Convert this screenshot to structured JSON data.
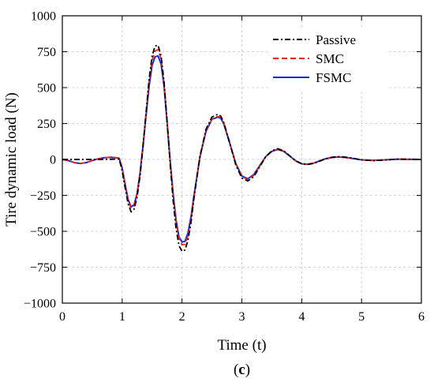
{
  "chart_data": {
    "type": "line",
    "xlabel": "Time (t)",
    "ylabel": "Tire dynamic load (N)",
    "panel_label": {
      "open": "(",
      "letter": "c",
      "close": ")"
    },
    "xlim": [
      0,
      6
    ],
    "ylim": [
      -1000,
      1000
    ],
    "xticks": [
      "0",
      "1",
      "2",
      "3",
      "4",
      "5",
      "6"
    ],
    "yticks": [
      "1000",
      "750",
      "500",
      "250",
      "0",
      "−250",
      "−500",
      "−750",
      "−1000"
    ],
    "xtick_values": [
      0,
      1,
      2,
      3,
      4,
      5,
      6
    ],
    "ytick_values": [
      1000,
      750,
      500,
      250,
      0,
      -250,
      -500,
      -750,
      -1000
    ],
    "grid": true,
    "legend_position": "top-right",
    "series": [
      {
        "name": "Passive",
        "color": "#000000",
        "style": "dashdot",
        "points": [
          [
            0,
            0
          ],
          [
            0.2,
            0
          ],
          [
            0.4,
            0
          ],
          [
            0.6,
            0
          ],
          [
            0.8,
            1
          ],
          [
            0.95,
            3
          ],
          [
            1.0,
            -80
          ],
          [
            1.05,
            -200
          ],
          [
            1.1,
            -310
          ],
          [
            1.15,
            -365
          ],
          [
            1.2,
            -345
          ],
          [
            1.25,
            -260
          ],
          [
            1.3,
            -110
          ],
          [
            1.35,
            100
          ],
          [
            1.4,
            330
          ],
          [
            1.45,
            560
          ],
          [
            1.5,
            720
          ],
          [
            1.55,
            790
          ],
          [
            1.6,
            795
          ],
          [
            1.65,
            720
          ],
          [
            1.7,
            540
          ],
          [
            1.75,
            270
          ],
          [
            1.8,
            -20
          ],
          [
            1.85,
            -280
          ],
          [
            1.9,
            -480
          ],
          [
            1.95,
            -600
          ],
          [
            2.0,
            -640
          ],
          [
            2.05,
            -630
          ],
          [
            2.1,
            -560
          ],
          [
            2.15,
            -440
          ],
          [
            2.2,
            -270
          ],
          [
            2.3,
            20
          ],
          [
            2.4,
            210
          ],
          [
            2.5,
            295
          ],
          [
            2.6,
            315
          ],
          [
            2.65,
            300
          ],
          [
            2.7,
            255
          ],
          [
            2.8,
            110
          ],
          [
            2.9,
            -40
          ],
          [
            3.0,
            -130
          ],
          [
            3.1,
            -150
          ],
          [
            3.2,
            -120
          ],
          [
            3.3,
            -50
          ],
          [
            3.4,
            20
          ],
          [
            3.5,
            60
          ],
          [
            3.6,
            75
          ],
          [
            3.7,
            60
          ],
          [
            3.8,
            25
          ],
          [
            3.9,
            -10
          ],
          [
            4.0,
            -30
          ],
          [
            4.1,
            -35
          ],
          [
            4.2,
            -28
          ],
          [
            4.3,
            -12
          ],
          [
            4.4,
            5
          ],
          [
            4.5,
            15
          ],
          [
            4.6,
            20
          ],
          [
            4.7,
            18
          ],
          [
            4.8,
            12
          ],
          [
            4.9,
            5
          ],
          [
            5.0,
            -3
          ],
          [
            5.2,
            -8
          ],
          [
            5.4,
            -4
          ],
          [
            5.6,
            2
          ],
          [
            5.8,
            2
          ],
          [
            6.0,
            0
          ]
        ]
      },
      {
        "name": "SMC",
        "color": "#e8241c",
        "style": "dashed",
        "points": [
          [
            0,
            0
          ],
          [
            0.1,
            -8
          ],
          [
            0.2,
            -22
          ],
          [
            0.3,
            -28
          ],
          [
            0.4,
            -22
          ],
          [
            0.5,
            -8
          ],
          [
            0.6,
            5
          ],
          [
            0.7,
            12
          ],
          [
            0.8,
            15
          ],
          [
            0.9,
            12
          ],
          [
            0.95,
            8
          ],
          [
            1.0,
            -60
          ],
          [
            1.05,
            -180
          ],
          [
            1.1,
            -290
          ],
          [
            1.15,
            -340
          ],
          [
            1.2,
            -325
          ],
          [
            1.25,
            -240
          ],
          [
            1.3,
            -90
          ],
          [
            1.35,
            110
          ],
          [
            1.4,
            330
          ],
          [
            1.45,
            540
          ],
          [
            1.5,
            690
          ],
          [
            1.55,
            755
          ],
          [
            1.6,
            765
          ],
          [
            1.65,
            700
          ],
          [
            1.7,
            530
          ],
          [
            1.75,
            270
          ],
          [
            1.8,
            0
          ],
          [
            1.85,
            -240
          ],
          [
            1.9,
            -430
          ],
          [
            1.95,
            -550
          ],
          [
            2.0,
            -595
          ],
          [
            2.05,
            -590
          ],
          [
            2.1,
            -530
          ],
          [
            2.15,
            -420
          ],
          [
            2.2,
            -260
          ],
          [
            2.3,
            20
          ],
          [
            2.4,
            200
          ],
          [
            2.5,
            280
          ],
          [
            2.6,
            300
          ],
          [
            2.65,
            290
          ],
          [
            2.7,
            250
          ],
          [
            2.8,
            110
          ],
          [
            2.9,
            -30
          ],
          [
            3.0,
            -120
          ],
          [
            3.1,
            -140
          ],
          [
            3.2,
            -110
          ],
          [
            3.3,
            -45
          ],
          [
            3.4,
            20
          ],
          [
            3.5,
            58
          ],
          [
            3.6,
            72
          ],
          [
            3.7,
            58
          ],
          [
            3.8,
            25
          ],
          [
            3.9,
            -10
          ],
          [
            4.0,
            -30
          ],
          [
            4.1,
            -34
          ],
          [
            4.2,
            -26
          ],
          [
            4.3,
            -10
          ],
          [
            4.4,
            5
          ],
          [
            4.5,
            14
          ],
          [
            4.6,
            18
          ],
          [
            4.7,
            16
          ],
          [
            4.8,
            10
          ],
          [
            4.9,
            4
          ],
          [
            5.0,
            -3
          ],
          [
            5.2,
            -7
          ],
          [
            5.4,
            -3
          ],
          [
            5.6,
            2
          ],
          [
            5.8,
            1
          ],
          [
            6.0,
            0
          ]
        ]
      },
      {
        "name": "FSMC",
        "color": "#1c2ad6",
        "style": "solid",
        "points": [
          [
            0,
            0
          ],
          [
            0.1,
            -8
          ],
          [
            0.2,
            -22
          ],
          [
            0.3,
            -28
          ],
          [
            0.4,
            -22
          ],
          [
            0.5,
            -8
          ],
          [
            0.6,
            5
          ],
          [
            0.7,
            12
          ],
          [
            0.8,
            15
          ],
          [
            0.9,
            12
          ],
          [
            0.95,
            8
          ],
          [
            1.0,
            -60
          ],
          [
            1.05,
            -175
          ],
          [
            1.1,
            -280
          ],
          [
            1.15,
            -330
          ],
          [
            1.2,
            -315
          ],
          [
            1.25,
            -235
          ],
          [
            1.3,
            -90
          ],
          [
            1.35,
            100
          ],
          [
            1.4,
            310
          ],
          [
            1.45,
            510
          ],
          [
            1.5,
            655
          ],
          [
            1.55,
            715
          ],
          [
            1.6,
            720
          ],
          [
            1.65,
            665
          ],
          [
            1.7,
            510
          ],
          [
            1.75,
            260
          ],
          [
            1.8,
            0
          ],
          [
            1.85,
            -230
          ],
          [
            1.9,
            -420
          ],
          [
            1.95,
            -540
          ],
          [
            2.0,
            -575
          ],
          [
            2.05,
            -570
          ],
          [
            2.1,
            -510
          ],
          [
            2.15,
            -400
          ],
          [
            2.2,
            -250
          ],
          [
            2.3,
            20
          ],
          [
            2.4,
            195
          ],
          [
            2.5,
            280
          ],
          [
            2.6,
            295
          ],
          [
            2.65,
            285
          ],
          [
            2.7,
            245
          ],
          [
            2.8,
            110
          ],
          [
            2.9,
            -30
          ],
          [
            3.0,
            -115
          ],
          [
            3.1,
            -135
          ],
          [
            3.2,
            -105
          ],
          [
            3.3,
            -42
          ],
          [
            3.4,
            20
          ],
          [
            3.5,
            56
          ],
          [
            3.6,
            70
          ],
          [
            3.7,
            56
          ],
          [
            3.8,
            24
          ],
          [
            3.9,
            -10
          ],
          [
            4.0,
            -30
          ],
          [
            4.1,
            -33
          ],
          [
            4.2,
            -25
          ],
          [
            4.3,
            -10
          ],
          [
            4.4,
            5
          ],
          [
            4.5,
            13
          ],
          [
            4.6,
            17
          ],
          [
            4.7,
            15
          ],
          [
            4.8,
            10
          ],
          [
            4.9,
            4
          ],
          [
            5.0,
            -3
          ],
          [
            5.2,
            -7
          ],
          [
            5.4,
            -3
          ],
          [
            5.6,
            2
          ],
          [
            5.8,
            1
          ],
          [
            6.0,
            0
          ]
        ]
      }
    ]
  }
}
